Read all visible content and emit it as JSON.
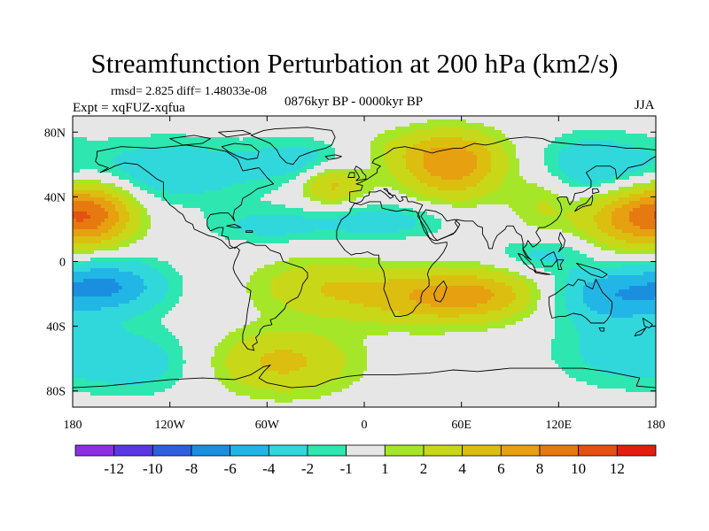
{
  "header": {
    "title": "Streamfunction Perturbation at 200 hPa (km2/s)",
    "stats": "rmsd= 2.825 diff= 1.48033e-08",
    "experiment": "Expt = xqFUZ-xqfua",
    "period": "0876kyr BP - 0000kyr BP",
    "season": "JJA"
  },
  "chart_data": {
    "type": "heatmap",
    "title": "Streamfunction Perturbation at 200 hPa (km2/s)",
    "x_range": [
      -180,
      180
    ],
    "y_range": [
      -90,
      90
    ],
    "x_ticks": [
      {
        "value": -180,
        "label": "180"
      },
      {
        "value": -120,
        "label": "120W"
      },
      {
        "value": -60,
        "label": "60W"
      },
      {
        "value": 0,
        "label": "0"
      },
      {
        "value": 60,
        "label": "60E"
      },
      {
        "value": 120,
        "label": "120E"
      },
      {
        "value": 180,
        "label": "180"
      }
    ],
    "y_ticks": [
      {
        "value": 80,
        "label": "80N"
      },
      {
        "value": 40,
        "label": "40N"
      },
      {
        "value": 0,
        "label": "0"
      },
      {
        "value": -40,
        "label": "40S"
      },
      {
        "value": -80,
        "label": "80S"
      }
    ],
    "colorbar": {
      "colors": [
        "#8e2fe6",
        "#5a37e6",
        "#2e5fe0",
        "#1a8fe0",
        "#22b6e6",
        "#30d8dc",
        "#2ee6b0",
        "#e6e6e6",
        "#a6e628",
        "#c8d818",
        "#dcbe10",
        "#e6a010",
        "#e67a10",
        "#e65010",
        "#e61c10"
      ],
      "labels": [
        "-12",
        "-10",
        "-8",
        "-6",
        "-4",
        "-2",
        "-1",
        "1",
        "2",
        "4",
        "6",
        "8",
        "10",
        "12"
      ]
    },
    "features": [
      {
        "lon": -165,
        "lat": 30,
        "sx": 18,
        "sy": 14,
        "amp": 7
      },
      {
        "lon": 165,
        "lat": 28,
        "sx": 22,
        "sy": 14,
        "amp": 7
      },
      {
        "lon": 55,
        "lat": 58,
        "sx": 22,
        "sy": 14,
        "amp": 6.5
      },
      {
        "lon": 38,
        "lat": 68,
        "sx": 35,
        "sy": 10,
        "amp": 2.2
      },
      {
        "lon": 110,
        "lat": 40,
        "sx": 14,
        "sy": 16,
        "amp": 2.5
      },
      {
        "lon": -20,
        "lat": 48,
        "sx": 14,
        "sy": 9,
        "amp": 5
      },
      {
        "lon": 40,
        "lat": -22,
        "sx": 38,
        "sy": 12,
        "amp": 5.5
      },
      {
        "lon": -30,
        "lat": -15,
        "sx": 28,
        "sy": 12,
        "amp": 3
      },
      {
        "lon": 75,
        "lat": -20,
        "sx": 25,
        "sy": 10,
        "amp": 3
      },
      {
        "lon": -50,
        "lat": -62,
        "sx": 30,
        "sy": 14,
        "amp": 4.5
      },
      {
        "lon": -120,
        "lat": 56,
        "sx": 40,
        "sy": 14,
        "amp": -3.5
      },
      {
        "lon": -35,
        "lat": 62,
        "sx": 25,
        "sy": 10,
        "amp": -3
      },
      {
        "lon": 10,
        "lat": 25,
        "sx": 30,
        "sy": 8,
        "amp": -3
      },
      {
        "lon": -60,
        "lat": 22,
        "sx": 25,
        "sy": 8,
        "amp": -2.5
      },
      {
        "lon": 140,
        "lat": 58,
        "sx": 30,
        "sy": 14,
        "amp": -4
      },
      {
        "lon": -158,
        "lat": -15,
        "sx": 25,
        "sy": 12,
        "amp": -6
      },
      {
        "lon": 150,
        "lat": -20,
        "sx": 25,
        "sy": 12,
        "amp": -5
      },
      {
        "lon": 160,
        "lat": -55,
        "sx": 30,
        "sy": 16,
        "amp": -3
      },
      {
        "lon": -140,
        "lat": -62,
        "sx": 25,
        "sy": 14,
        "amp": -3
      },
      {
        "lon": 110,
        "lat": 5,
        "sx": 20,
        "sy": 8,
        "amp": -2.5
      }
    ]
  }
}
